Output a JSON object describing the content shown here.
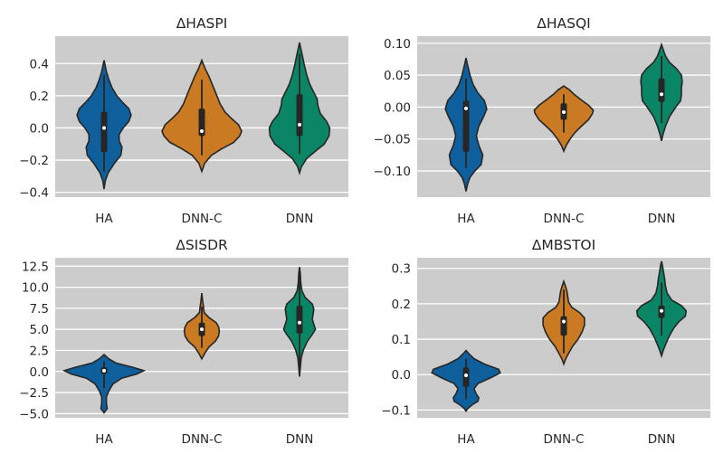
{
  "chart_data": [
    {
      "type": "violin",
      "title": "ΔHASPI",
      "categories": [
        "HA",
        "DNN-C",
        "DNN"
      ],
      "colors": [
        "#0f5f9c",
        "#c97a22",
        "#0a8566"
      ],
      "ylim": [
        -0.43,
        0.57
      ],
      "yticks": [
        -0.4,
        -0.2,
        0.0,
        0.2,
        0.4
      ],
      "ytick_labels": [
        "−0.4",
        "−0.2",
        "0.0",
        "0.2",
        "0.4"
      ],
      "grid": true,
      "series": [
        {
          "category": "HA",
          "min": -0.27,
          "q1": -0.15,
          "median": 0.0,
          "q3": 0.1,
          "max": 0.33,
          "profile": [
            [
              -0.38,
              0.0
            ],
            [
              -0.33,
              0.03
            ],
            [
              -0.28,
              0.1
            ],
            [
              -0.22,
              0.26
            ],
            [
              -0.17,
              0.42
            ],
            [
              -0.12,
              0.45
            ],
            [
              -0.08,
              0.38
            ],
            [
              -0.04,
              0.38
            ],
            [
              0.0,
              0.48
            ],
            [
              0.04,
              0.62
            ],
            [
              0.08,
              0.68
            ],
            [
              0.12,
              0.62
            ],
            [
              0.16,
              0.46
            ],
            [
              0.2,
              0.32
            ],
            [
              0.25,
              0.2
            ],
            [
              0.3,
              0.12
            ],
            [
              0.35,
              0.06
            ],
            [
              0.42,
              0.0
            ]
          ]
        },
        {
          "category": "DNN-C",
          "min": -0.17,
          "q1": -0.05,
          "median": -0.02,
          "q3": 0.12,
          "max": 0.3,
          "profile": [
            [
              -0.27,
              0.0
            ],
            [
              -0.22,
              0.07
            ],
            [
              -0.17,
              0.24
            ],
            [
              -0.13,
              0.5
            ],
            [
              -0.09,
              0.8
            ],
            [
              -0.05,
              0.95
            ],
            [
              -0.02,
              1.0
            ],
            [
              0.02,
              0.92
            ],
            [
              0.06,
              0.74
            ],
            [
              0.1,
              0.58
            ],
            [
              0.15,
              0.46
            ],
            [
              0.2,
              0.38
            ],
            [
              0.26,
              0.28
            ],
            [
              0.32,
              0.18
            ],
            [
              0.37,
              0.08
            ],
            [
              0.42,
              0.0
            ]
          ]
        },
        {
          "category": "DNN",
          "min": -0.16,
          "q1": -0.05,
          "median": 0.02,
          "q3": 0.21,
          "max": 0.46,
          "profile": [
            [
              -0.28,
              0.0
            ],
            [
              -0.24,
              0.05
            ],
            [
              -0.19,
              0.18
            ],
            [
              -0.14,
              0.42
            ],
            [
              -0.1,
              0.62
            ],
            [
              -0.05,
              0.74
            ],
            [
              0.0,
              0.76
            ],
            [
              0.04,
              0.68
            ],
            [
              0.09,
              0.52
            ],
            [
              0.14,
              0.46
            ],
            [
              0.18,
              0.44
            ],
            [
              0.22,
              0.36
            ],
            [
              0.27,
              0.26
            ],
            [
              0.33,
              0.18
            ],
            [
              0.39,
              0.12
            ],
            [
              0.45,
              0.07
            ],
            [
              0.53,
              0.0
            ]
          ]
        }
      ]
    },
    {
      "type": "violin",
      "title": "ΔHASQI",
      "categories": [
        "HA",
        "DNN-C",
        "DNN"
      ],
      "colors": [
        "#0f5f9c",
        "#c97a22",
        "#0a8566"
      ],
      "ylim": [
        -0.141,
        0.111
      ],
      "yticks": [
        -0.1,
        -0.05,
        0.0,
        0.05,
        0.1
      ],
      "ytick_labels": [
        "−0.10",
        "−0.05",
        "0.00",
        "0.05",
        "0.10"
      ],
      "grid": true,
      "series": [
        {
          "category": "HA",
          "min": -0.095,
          "q1": -0.07,
          "median": -0.002,
          "q3": 0.01,
          "max": 0.045,
          "profile": [
            [
              -0.132,
              0.0
            ],
            [
              -0.12,
              0.04
            ],
            [
              -0.11,
              0.1
            ],
            [
              -0.1,
              0.22
            ],
            [
              -0.09,
              0.38
            ],
            [
              -0.075,
              0.42
            ],
            [
              -0.06,
              0.32
            ],
            [
              -0.045,
              0.26
            ],
            [
              -0.03,
              0.32
            ],
            [
              -0.015,
              0.44
            ],
            [
              -0.003,
              0.52
            ],
            [
              0.01,
              0.46
            ],
            [
              0.022,
              0.3
            ],
            [
              0.035,
              0.18
            ],
            [
              0.05,
              0.1
            ],
            [
              0.065,
              0.04
            ],
            [
              0.077,
              0.0
            ]
          ]
        },
        {
          "category": "DNN-C",
          "min": -0.04,
          "q1": -0.02,
          "median": -0.008,
          "q3": 0.006,
          "max": 0.02,
          "profile": [
            [
              -0.069,
              0.0
            ],
            [
              -0.06,
              0.06
            ],
            [
              -0.05,
              0.16
            ],
            [
              -0.04,
              0.28
            ],
            [
              -0.03,
              0.44
            ],
            [
              -0.02,
              0.62
            ],
            [
              -0.01,
              0.72
            ],
            [
              -0.005,
              0.74
            ],
            [
              0.003,
              0.62
            ],
            [
              0.012,
              0.42
            ],
            [
              0.02,
              0.26
            ],
            [
              0.027,
              0.14
            ],
            [
              0.033,
              0.0
            ]
          ]
        },
        {
          "category": "DNN",
          "min": -0.025,
          "q1": 0.008,
          "median": 0.02,
          "q3": 0.045,
          "max": 0.08,
          "profile": [
            [
              -0.053,
              0.0
            ],
            [
              -0.042,
              0.04
            ],
            [
              -0.03,
              0.1
            ],
            [
              -0.015,
              0.2
            ],
            [
              0.0,
              0.36
            ],
            [
              0.01,
              0.48
            ],
            [
              0.02,
              0.5
            ],
            [
              0.03,
              0.5
            ],
            [
              0.04,
              0.52
            ],
            [
              0.05,
              0.5
            ],
            [
              0.06,
              0.38
            ],
            [
              0.07,
              0.2
            ],
            [
              0.08,
              0.1
            ],
            [
              0.09,
              0.04
            ],
            [
              0.098,
              0.0
            ]
          ]
        }
      ]
    },
    {
      "type": "violin",
      "title": "ΔSISDR",
      "categories": [
        "HA",
        "DNN-C",
        "DNN"
      ],
      "colors": [
        "#0f5f9c",
        "#c97a22",
        "#0a8566"
      ],
      "ylim": [
        -5.5,
        13.5
      ],
      "yticks": [
        -5.0,
        -2.5,
        0.0,
        2.5,
        5.0,
        7.5,
        10.0,
        12.5
      ],
      "ytick_labels": [
        "−5.0",
        "−2.5",
        "0.0",
        "2.5",
        "5.0",
        "7.5",
        "10.0",
        "12.5"
      ],
      "grid": true,
      "series": [
        {
          "category": "HA",
          "min": -2.0,
          "q1": -0.3,
          "median": 0.1,
          "q3": 0.5,
          "max": 1.2,
          "profile": [
            [
              -4.9,
              0.0
            ],
            [
              -4.4,
              0.08
            ],
            [
              -3.8,
              0.06
            ],
            [
              -3.0,
              0.06
            ],
            [
              -2.3,
              0.12
            ],
            [
              -1.5,
              0.22
            ],
            [
              -0.8,
              0.44
            ],
            [
              -0.3,
              0.82
            ],
            [
              0.1,
              1.0
            ],
            [
              0.5,
              0.72
            ],
            [
              1.0,
              0.3
            ],
            [
              1.5,
              0.12
            ],
            [
              2.0,
              0.0
            ]
          ]
        },
        {
          "category": "DNN-C",
          "min": 2.8,
          "q1": 4.2,
          "median": 5.0,
          "q3": 5.8,
          "max": 7.7,
          "profile": [
            [
              1.5,
              0.0
            ],
            [
              2.2,
              0.08
            ],
            [
              2.9,
              0.18
            ],
            [
              3.6,
              0.34
            ],
            [
              4.2,
              0.42
            ],
            [
              4.8,
              0.44
            ],
            [
              5.3,
              0.42
            ],
            [
              5.8,
              0.36
            ],
            [
              6.4,
              0.18
            ],
            [
              7.0,
              0.06
            ],
            [
              7.7,
              0.04
            ],
            [
              8.4,
              0.02
            ],
            [
              9.3,
              0.0
            ]
          ]
        },
        {
          "category": "DNN",
          "min": -0.5,
          "q1": 4.5,
          "median": 5.8,
          "q3": 7.8,
          "max": 12.0,
          "profile": [
            [
              -0.6,
              0.0
            ],
            [
              0.5,
              0.02
            ],
            [
              1.6,
              0.04
            ],
            [
              2.6,
              0.1
            ],
            [
              3.6,
              0.2
            ],
            [
              4.4,
              0.32
            ],
            [
              5.0,
              0.4
            ],
            [
              5.6,
              0.36
            ],
            [
              6.2,
              0.32
            ],
            [
              6.8,
              0.34
            ],
            [
              7.4,
              0.36
            ],
            [
              8.0,
              0.32
            ],
            [
              8.8,
              0.14
            ],
            [
              9.6,
              0.06
            ],
            [
              10.6,
              0.03
            ],
            [
              11.6,
              0.02
            ],
            [
              12.4,
              0.0
            ]
          ]
        }
      ]
    },
    {
      "type": "violin",
      "title": "ΔMBSTOI",
      "categories": [
        "HA",
        "DNN-C",
        "DNN"
      ],
      "colors": [
        "#0f5f9c",
        "#c97a22",
        "#0a8566"
      ],
      "ylim": [
        -0.122,
        0.33
      ],
      "yticks": [
        -0.1,
        0.0,
        0.1,
        0.2,
        0.3
      ],
      "ytick_labels": [
        "−0.1",
        "0.0",
        "0.1",
        "0.2",
        "0.3"
      ],
      "grid": true,
      "series": [
        {
          "category": "HA",
          "min": -0.07,
          "q1": -0.035,
          "median": -0.002,
          "q3": 0.02,
          "max": 0.045,
          "profile": [
            [
              -0.103,
              0.0
            ],
            [
              -0.095,
              0.05
            ],
            [
              -0.085,
              0.16
            ],
            [
              -0.075,
              0.3
            ],
            [
              -0.065,
              0.32
            ],
            [
              -0.055,
              0.26
            ],
            [
              -0.04,
              0.2
            ],
            [
              -0.025,
              0.3
            ],
            [
              -0.01,
              0.6
            ],
            [
              0.005,
              0.86
            ],
            [
              0.015,
              0.82
            ],
            [
              0.03,
              0.46
            ],
            [
              0.045,
              0.2
            ],
            [
              0.058,
              0.08
            ],
            [
              0.068,
              0.0
            ]
          ]
        },
        {
          "category": "DNN-C",
          "min": 0.06,
          "q1": 0.11,
          "median": 0.15,
          "q3": 0.165,
          "max": 0.24,
          "profile": [
            [
              0.03,
              0.0
            ],
            [
              0.045,
              0.05
            ],
            [
              0.06,
              0.12
            ],
            [
              0.08,
              0.22
            ],
            [
              0.1,
              0.36
            ],
            [
              0.12,
              0.46
            ],
            [
              0.14,
              0.52
            ],
            [
              0.16,
              0.52
            ],
            [
              0.175,
              0.4
            ],
            [
              0.19,
              0.2
            ],
            [
              0.205,
              0.12
            ],
            [
              0.22,
              0.1
            ],
            [
              0.235,
              0.08
            ],
            [
              0.25,
              0.04
            ],
            [
              0.263,
              0.0
            ]
          ]
        },
        {
          "category": "DNN",
          "min": 0.11,
          "q1": 0.16,
          "median": 0.18,
          "q3": 0.195,
          "max": 0.26,
          "profile": [
            [
              0.053,
              0.0
            ],
            [
              0.07,
              0.05
            ],
            [
              0.09,
              0.12
            ],
            [
              0.11,
              0.2
            ],
            [
              0.13,
              0.3
            ],
            [
              0.15,
              0.44
            ],
            [
              0.165,
              0.6
            ],
            [
              0.18,
              0.62
            ],
            [
              0.195,
              0.5
            ],
            [
              0.21,
              0.26
            ],
            [
              0.23,
              0.14
            ],
            [
              0.25,
              0.1
            ],
            [
              0.27,
              0.08
            ],
            [
              0.29,
              0.05
            ],
            [
              0.31,
              0.02
            ],
            [
              0.32,
              0.0
            ]
          ]
        }
      ]
    }
  ]
}
